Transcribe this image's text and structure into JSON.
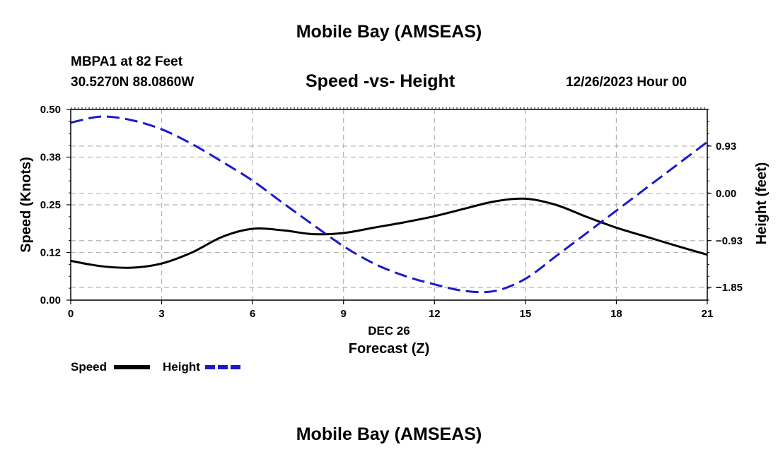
{
  "header": {
    "title_top": "Mobile Bay (AMSEAS)",
    "station": "MBPA1 at 82 Feet",
    "coords": "30.5270N  88.0860W",
    "chart_title": "Speed -vs- Height",
    "datetime": "12/26/2023 Hour 00",
    "title_bottom": "Mobile Bay (AMSEAS)"
  },
  "legend": {
    "speed_label": "Speed",
    "height_label": "Height"
  },
  "colors": {
    "speed": "#000000",
    "height": "#1a1acc",
    "grid": "#b4b4b4"
  },
  "chart_data": {
    "type": "line",
    "title": "Speed -vs- Height",
    "xlabel": "Forecast (Z)",
    "xsublabel": "DEC 26",
    "ylabel": "Speed (Knots)",
    "y2label": "Height (feet)",
    "xlim": [
      0,
      21
    ],
    "ylim": [
      0,
      0.5
    ],
    "y2lim": [
      -2.1,
      1.65
    ],
    "x_ticks": [
      0,
      3,
      6,
      9,
      12,
      15,
      18,
      21
    ],
    "x_tick_labels": [
      "0",
      "3",
      "6",
      "9",
      "12",
      "15",
      "18",
      "21"
    ],
    "y_ticks": [
      0,
      0.125,
      0.25,
      0.375,
      0.5
    ],
    "y_tick_labels": [
      "0.00",
      "0.12",
      "0.25",
      "0.38",
      "0.50"
    ],
    "y2_ticks": [
      -1.85,
      -0.93,
      0.0,
      0.93
    ],
    "y2_tick_labels": [
      "−1.85",
      "−0.93",
      "0.00",
      "0.93"
    ],
    "series": [
      {
        "name": "Speed",
        "axis": "left",
        "style": "solid",
        "x": [
          0,
          1,
          2,
          3,
          4,
          5,
          6,
          7,
          8,
          9,
          10,
          11,
          12,
          13,
          14,
          15,
          16,
          17,
          18,
          19,
          20,
          21
        ],
        "values": [
          0.103,
          0.089,
          0.085,
          0.096,
          0.125,
          0.166,
          0.187,
          0.183,
          0.173,
          0.176,
          0.19,
          0.204,
          0.22,
          0.24,
          0.259,
          0.266,
          0.25,
          0.219,
          0.19,
          0.166,
          0.142,
          0.119
        ]
      },
      {
        "name": "Height",
        "axis": "right",
        "style": "dashed",
        "x": [
          0,
          1,
          2,
          3,
          4,
          5,
          6,
          7,
          8,
          9,
          10,
          11,
          12,
          13,
          14,
          15,
          16,
          17,
          18,
          19,
          20,
          21
        ],
        "values": [
          1.39,
          1.51,
          1.44,
          1.26,
          0.97,
          0.62,
          0.25,
          -0.19,
          -0.62,
          -1.04,
          -1.38,
          -1.62,
          -1.79,
          -1.92,
          -1.92,
          -1.68,
          -1.24,
          -0.79,
          -0.34,
          0.11,
          0.56,
          1.01
        ]
      }
    ],
    "legend_position": "bottom-left"
  }
}
